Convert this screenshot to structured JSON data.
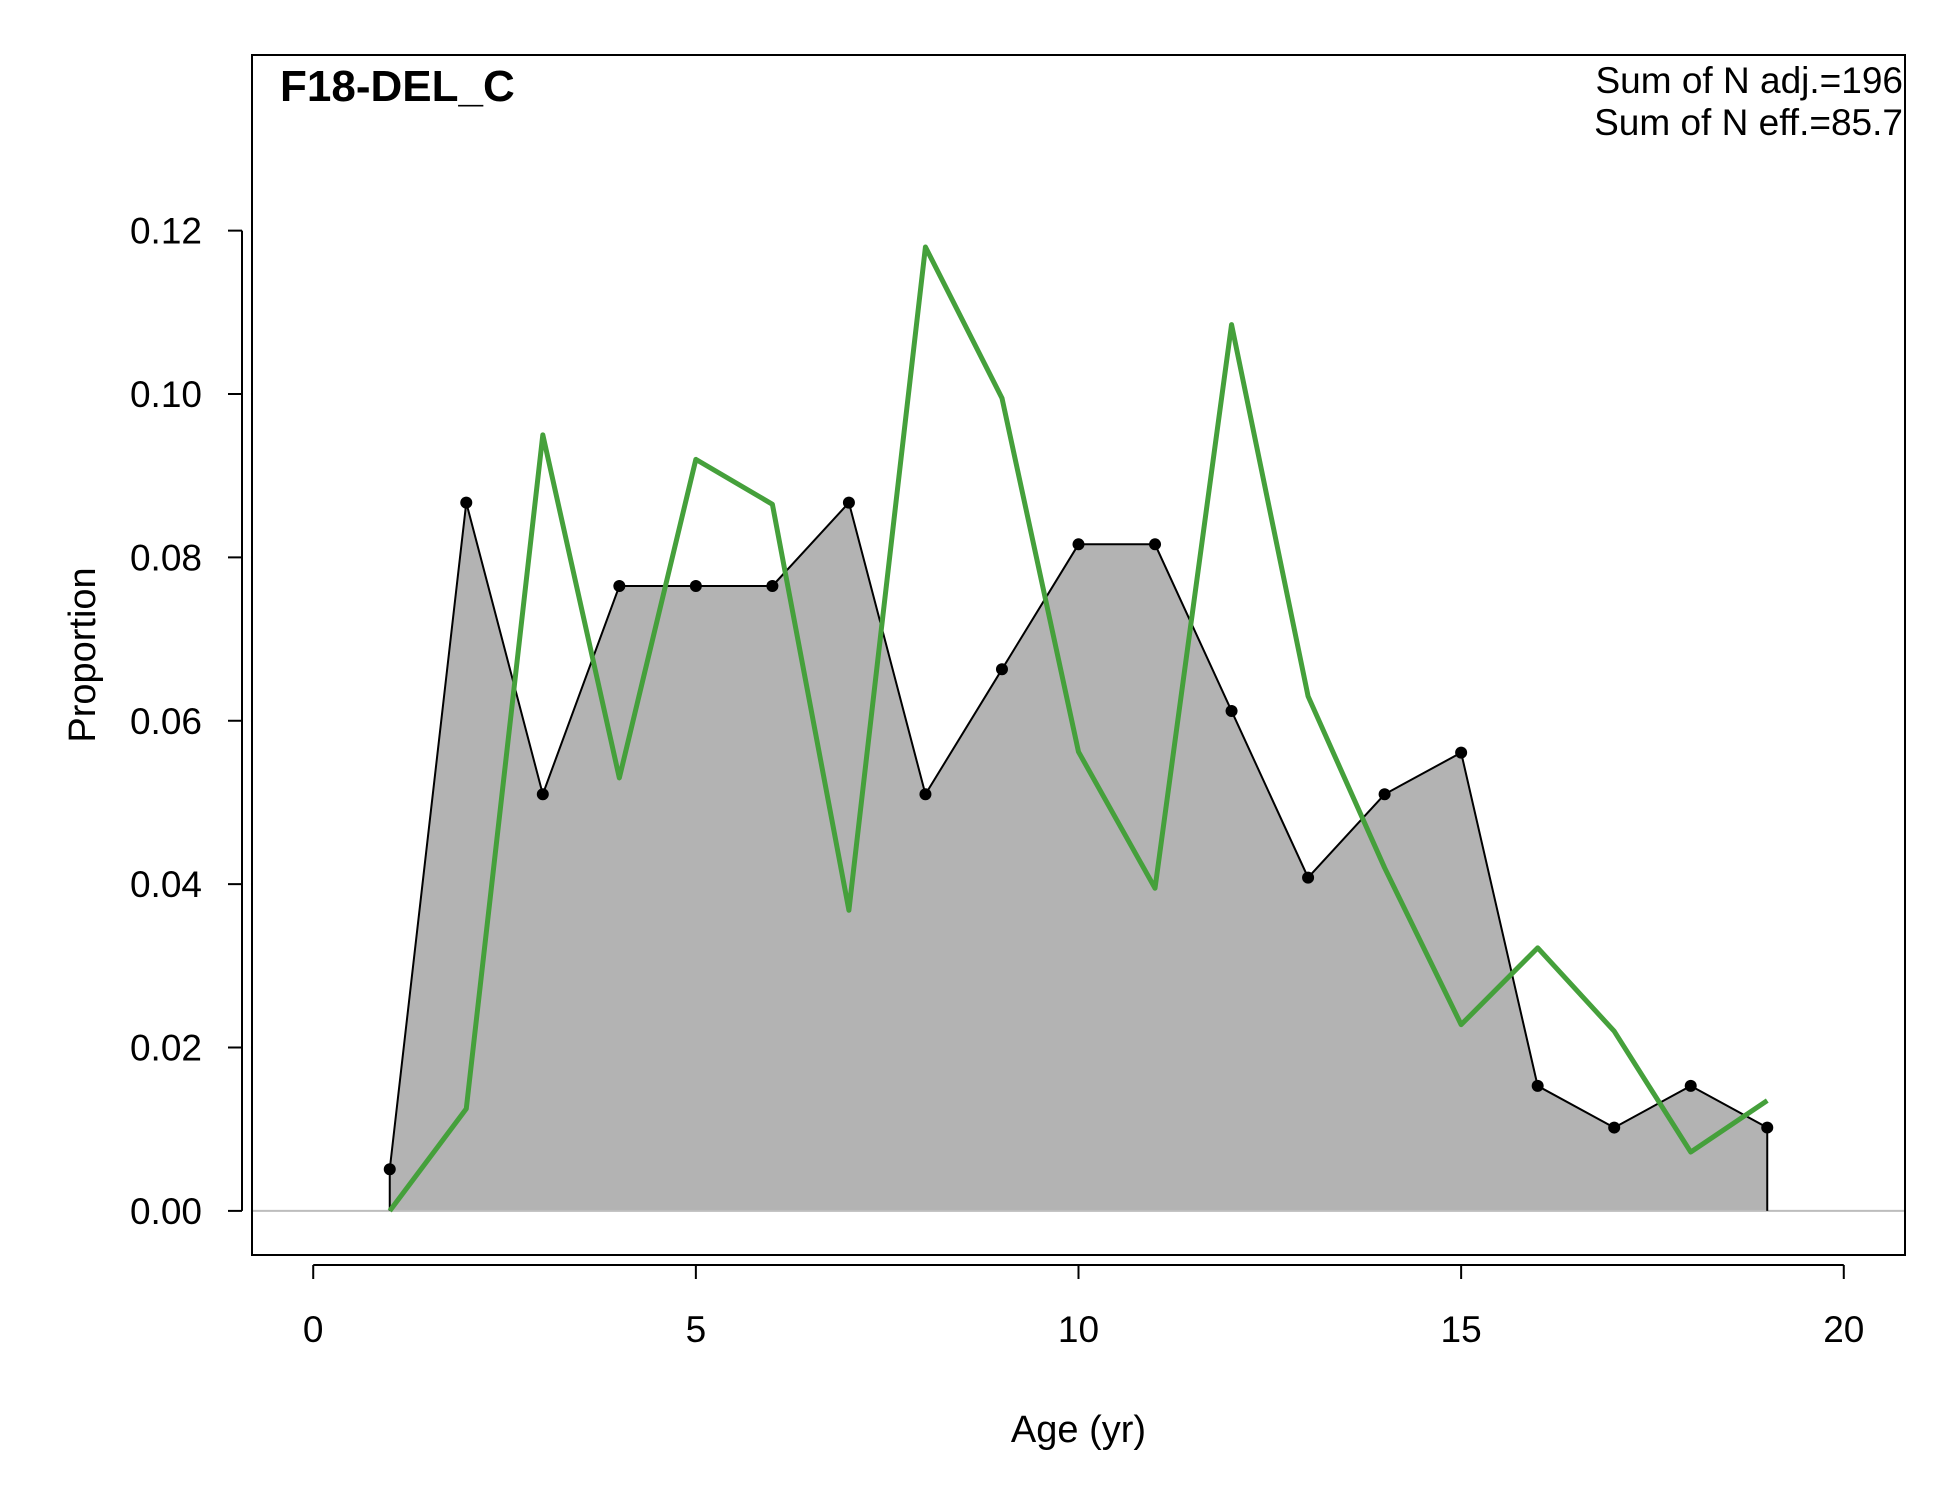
{
  "chart_data": {
    "type": "area",
    "title": "F18-DEL_C",
    "xlabel": "Age (yr)",
    "ylabel": "Proportion",
    "xlim": [
      -0.8,
      20.8
    ],
    "ylim": [
      -0.0054,
      0.1415
    ],
    "x_ticks": [
      0,
      5,
      10,
      15,
      20
    ],
    "x_tick_labels": [
      "0",
      "5",
      "10",
      "15",
      "20"
    ],
    "y_ticks": [
      0,
      0.02,
      0.04,
      0.06,
      0.08,
      0.1,
      0.12
    ],
    "y_tick_labels": [
      "0.00",
      "0.02",
      "0.04",
      "0.06",
      "0.08",
      "0.10",
      "0.12"
    ],
    "annotations": [
      "Sum of N adj.=196",
      "Sum of N eff.=85.7"
    ],
    "grid": false,
    "series": [
      {
        "style": "filled area with points",
        "color": "#b3b3b3",
        "line_color": "#000000",
        "x": [
          1,
          2,
          3,
          4,
          5,
          6,
          7,
          8,
          9,
          10,
          11,
          12,
          13,
          14,
          15,
          16,
          17,
          18,
          19
        ],
        "values": [
          0.0051,
          0.0867,
          0.051,
          0.0765,
          0.0765,
          0.0765,
          0.0867,
          0.051,
          0.0663,
          0.0816,
          0.0816,
          0.0612,
          0.0408,
          0.051,
          0.0561,
          0.0153,
          0.0102,
          0.0153,
          0.0102
        ]
      },
      {
        "style": "line",
        "color": "#45a03b",
        "x": [
          1,
          2,
          3,
          4,
          5,
          6,
          7,
          8,
          9,
          10,
          11,
          12,
          13,
          14,
          15,
          16,
          17,
          18,
          19
        ],
        "values": [
          0.0,
          0.0125,
          0.095,
          0.053,
          0.092,
          0.0865,
          0.0368,
          0.118,
          0.0995,
          0.0562,
          0.0395,
          0.1085,
          0.063,
          0.042,
          0.0228,
          0.0322,
          0.022,
          0.0072,
          0.0135
        ]
      }
    ]
  }
}
